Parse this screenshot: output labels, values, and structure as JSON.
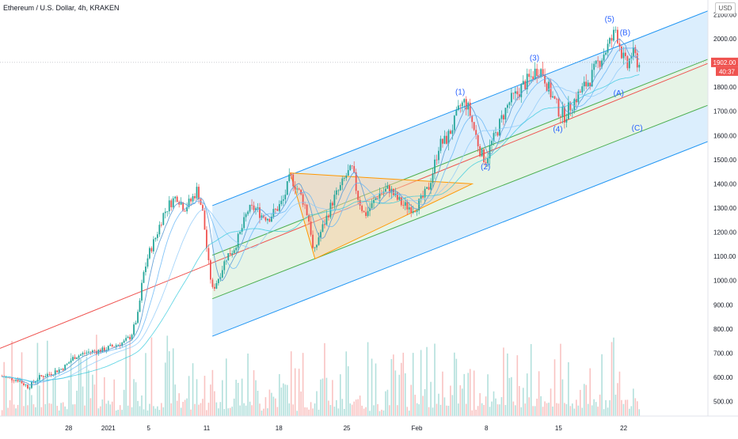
{
  "header": {
    "symbol_title": "Ethereum / U.S. Dollar, 4h, KRAKEN",
    "currency_button": "USD"
  },
  "chart_data": {
    "type": "candlestick",
    "ylim": [
      440,
      2160
    ],
    "xlim": [
      0,
      100
    ],
    "y_ticks": [
      500,
      600,
      700,
      800,
      900,
      1000,
      1100,
      1200,
      1300,
      1400,
      1500,
      1600,
      1700,
      1800,
      1900,
      2000,
      2100
    ],
    "y_tick_labels": [
      "500.00",
      "600.00",
      "700.00",
      "800.00",
      "900.00",
      "1000.00",
      "1100.00",
      "1200.00",
      "1300.00",
      "1400.00",
      "1500.00",
      "1600.00",
      "1700.00",
      "1800.00",
      "1900.00",
      "2000.00",
      "2100.00"
    ],
    "x_ticks": [
      {
        "x": 9.7,
        "label": "28"
      },
      {
        "x": 15.3,
        "label": "2021"
      },
      {
        "x": 21.0,
        "label": "5"
      },
      {
        "x": 29.2,
        "label": "11"
      },
      {
        "x": 39.4,
        "label": "18"
      },
      {
        "x": 49.0,
        "label": "25"
      },
      {
        "x": 58.9,
        "label": "Feb"
      },
      {
        "x": 68.7,
        "label": "8"
      },
      {
        "x": 78.9,
        "label": "15"
      },
      {
        "x": 88.1,
        "label": "22"
      }
    ],
    "last_price": {
      "value": 1902.0,
      "label": "1902.00",
      "countdown": "40:37",
      "color": "#ef5350"
    },
    "price_path": [
      [
        0,
        605
      ],
      [
        2.5,
        590
      ],
      [
        4,
        560
      ],
      [
        5.5,
        600
      ],
      [
        7,
        615
      ],
      [
        9,
        640
      ],
      [
        10.5,
        685
      ],
      [
        12.5,
        705
      ],
      [
        14.5,
        712
      ],
      [
        16,
        730
      ],
      [
        17.5,
        745
      ],
      [
        18.5,
        770
      ],
      [
        19.5,
        860
      ],
      [
        20.2,
        1020
      ],
      [
        21,
        1110
      ],
      [
        22,
        1180
      ],
      [
        23,
        1270
      ],
      [
        24,
        1320
      ],
      [
        25,
        1350
      ],
      [
        26,
        1300
      ],
      [
        27,
        1330
      ],
      [
        27.9,
        1380
      ],
      [
        28.7,
        1270
      ],
      [
        29.4,
        1080
      ],
      [
        30,
        960
      ],
      [
        31,
        1020
      ],
      [
        32,
        1100
      ],
      [
        33,
        1130
      ],
      [
        34,
        1200
      ],
      [
        35,
        1290
      ],
      [
        36,
        1300
      ],
      [
        37,
        1270
      ],
      [
        38,
        1260
      ],
      [
        39.2,
        1300
      ],
      [
        40,
        1330
      ],
      [
        41,
        1430
      ],
      [
        42,
        1380
      ],
      [
        43,
        1320
      ],
      [
        43.8,
        1230
      ],
      [
        44.3,
        1100
      ],
      [
        45,
        1180
      ],
      [
        46,
        1250
      ],
      [
        47,
        1330
      ],
      [
        48,
        1380
      ],
      [
        49,
        1440
      ],
      [
        49.8,
        1460
      ],
      [
        50.5,
        1350
      ],
      [
        51.5,
        1270
      ],
      [
        52.5,
        1310
      ],
      [
        53.5,
        1360
      ],
      [
        55,
        1380
      ],
      [
        56,
        1340
      ],
      [
        57,
        1310
      ],
      [
        58.5,
        1300
      ],
      [
        59.5,
        1330
      ],
      [
        60.5,
        1380
      ],
      [
        61.3,
        1470
      ],
      [
        62,
        1560
      ],
      [
        63,
        1580
      ],
      [
        64,
        1640
      ],
      [
        65,
        1720
      ],
      [
        65.7,
        1740
      ],
      [
        66.3,
        1700
      ],
      [
        67,
        1620
      ],
      [
        68,
        1520
      ],
      [
        68.7,
        1500
      ],
      [
        69.3,
        1560
      ],
      [
        70,
        1600
      ],
      [
        71,
        1680
      ],
      [
        72,
        1740
      ],
      [
        73,
        1770
      ],
      [
        74,
        1810
      ],
      [
        75,
        1840
      ],
      [
        76,
        1880
      ],
      [
        76.7,
        1860
      ],
      [
        77.4,
        1800
      ],
      [
        78,
        1760
      ],
      [
        79,
        1700
      ],
      [
        79.8,
        1680
      ],
      [
        80.5,
        1720
      ],
      [
        81.5,
        1760
      ],
      [
        82.5,
        1800
      ],
      [
        83.5,
        1840
      ],
      [
        84.5,
        1900
      ],
      [
        85.5,
        1950
      ],
      [
        86.5,
        2000
      ],
      [
        87,
        2040
      ],
      [
        87.5,
        1980
      ],
      [
        88,
        1920
      ],
      [
        88.6,
        1880
      ],
      [
        89.2,
        1940
      ],
      [
        89.8,
        1920
      ],
      [
        90.3,
        1890
      ]
    ],
    "channel": {
      "x_range": [
        30,
        100
      ],
      "upper": [
        1310,
        2115
      ],
      "upper_mid": [
        1105,
        1915
      ],
      "median": [
        1020,
        1825
      ],
      "lower_mid": [
        925,
        1725
      ],
      "lower": [
        770,
        1575
      ]
    },
    "median_line": {
      "from": [
        0,
        720
      ],
      "to": [
        100,
        1898
      ],
      "color": "#ef5350"
    },
    "triangle": {
      "points": [
        [
          41,
          1445
        ],
        [
          66.7,
          1400
        ],
        [
          44.5,
          1090
        ]
      ],
      "fill": "#f9cb9c",
      "stroke": "#ff9800"
    },
    "wave_labels": [
      {
        "label": "(1)",
        "x": 65,
        "price": 1770
      },
      {
        "label": "(2)",
        "x": 68.6,
        "price": 1460
      },
      {
        "label": "(3)",
        "x": 75.5,
        "price": 1910
      },
      {
        "label": "(4)",
        "x": 78.8,
        "price": 1615
      },
      {
        "label": "(5)",
        "x": 86.1,
        "price": 2070
      },
      {
        "label": "(B)",
        "x": 88.3,
        "price": 2015
      },
      {
        "label": "(A)",
        "x": 87.4,
        "price": 1765
      },
      {
        "label": "(C)",
        "x": 90,
        "price": 1620
      }
    ],
    "colors": {
      "up": "#26a69a",
      "down": "#ef5350",
      "channel_blue": "#2196f3",
      "channel_green": "#4caf50",
      "wave_label": "#2962ff"
    }
  }
}
